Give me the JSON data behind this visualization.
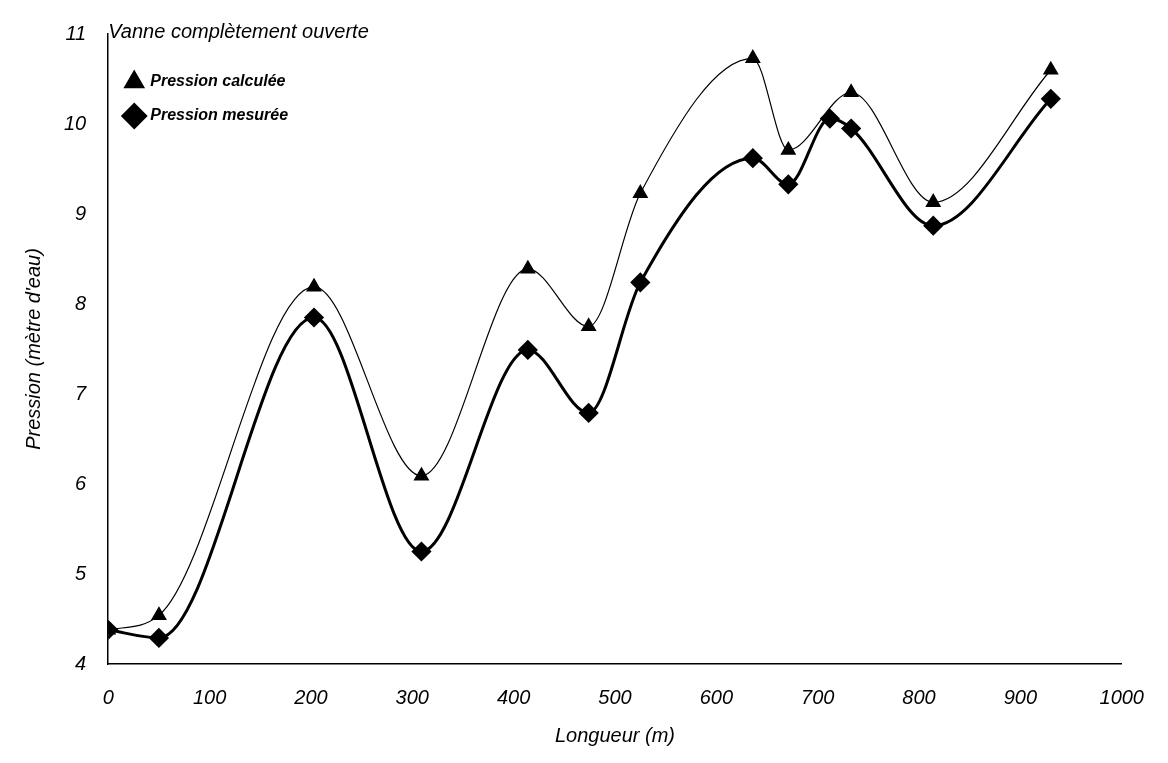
{
  "chart_data": {
    "type": "line",
    "xlabel": "Longueur (m)",
    "ylabel": "Pression (mètre d'eau)",
    "legend_title": "Vanne complètement ouverte",
    "legend": "top left",
    "grid": false,
    "xlim": [
      0,
      1000
    ],
    "xticks": [
      0,
      100,
      200,
      300,
      400,
      500,
      600,
      700,
      800,
      900,
      1000
    ],
    "ylim": [
      4,
      11
    ],
    "yticks": [
      4,
      5,
      6,
      7,
      8,
      9,
      10,
      11
    ],
    "series": [
      {
        "name": "Pression calculée",
        "color": "#000000",
        "marker": "triangle",
        "x": [
          0,
          50,
          203,
          309,
          414,
          474,
          525,
          636,
          671,
          733,
          814,
          930
        ],
        "values": [
          4.38,
          4.54,
          8.19,
          6.09,
          8.39,
          7.75,
          9.23,
          10.73,
          9.71,
          10.35,
          9.13,
          10.6
        ]
      },
      {
        "name": "Pression mesurée",
        "color": "#000000",
        "marker": "diamond",
        "x": [
          0,
          50,
          203,
          309,
          414,
          474,
          525,
          636,
          671,
          712,
          733,
          814,
          930
        ],
        "values": [
          4.38,
          4.29,
          7.85,
          5.25,
          7.49,
          6.79,
          8.24,
          9.62,
          9.33,
          10.06,
          9.95,
          8.87,
          10.28
        ]
      }
    ]
  }
}
